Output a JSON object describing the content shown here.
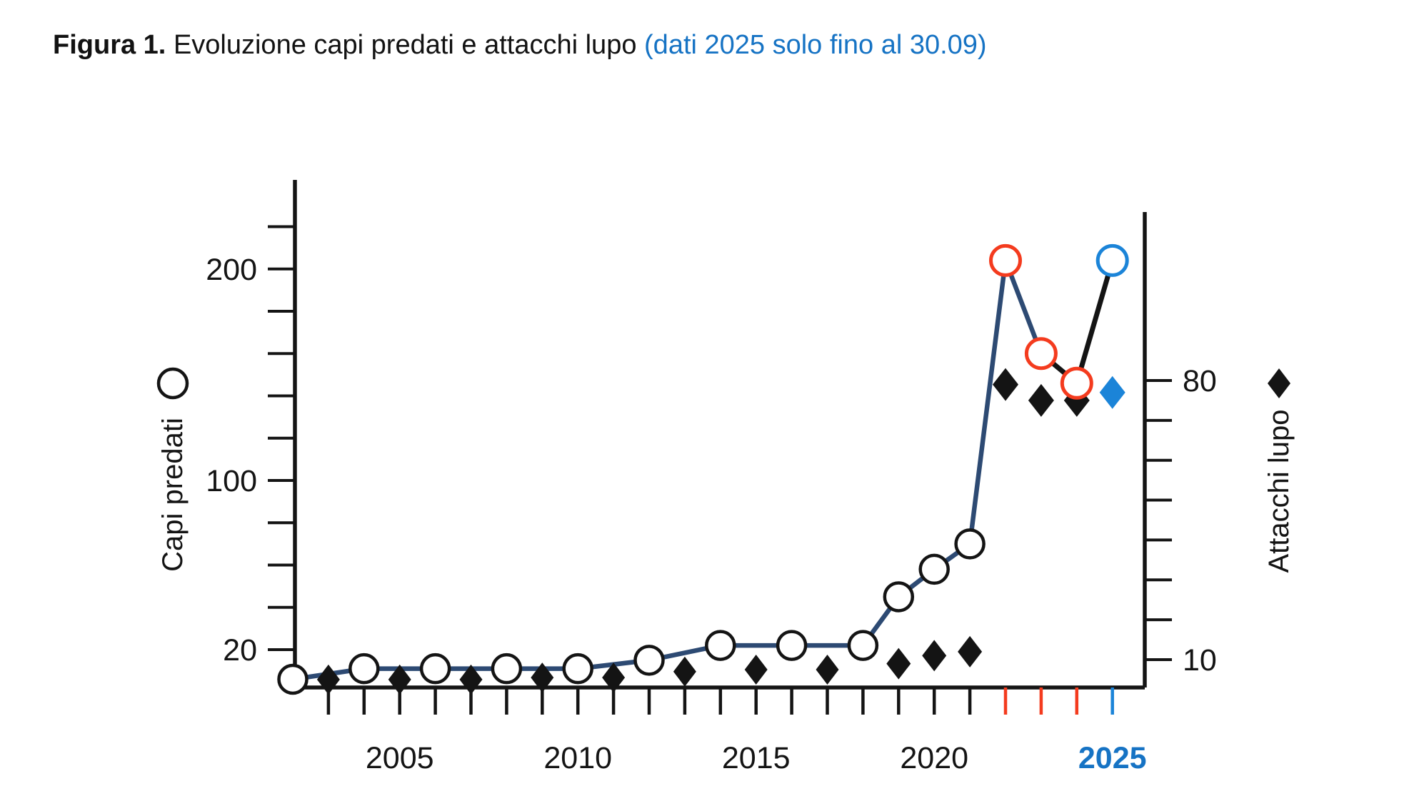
{
  "title": {
    "prefix": "Figura 1.",
    "main": "Evoluzione capi predati e attacchi lupo",
    "note": "(dati 2025 solo fino al 30.09)"
  },
  "colors": {
    "black": "#141414",
    "navy": "#2d4a73",
    "red": "#f43b1e",
    "blue": "#1b84d8",
    "blue_text": "#1673c4"
  },
  "chart_data": {
    "type": "line",
    "title": "Evoluzione capi predati e attacchi lupo",
    "left_axis": {
      "label": "Capi predati",
      "marker": "circle",
      "ticks": [
        20,
        40,
        60,
        80,
        100,
        120,
        140,
        160,
        180,
        200,
        220
      ],
      "labeled_ticks": [
        20,
        100,
        200
      ]
    },
    "right_axis": {
      "label": "Attacchi lupo",
      "marker": "diamond",
      "ticks": [
        10,
        20,
        30,
        40,
        50,
        60,
        70,
        80
      ],
      "labeled_ticks": [
        10,
        80
      ]
    },
    "x_axis": {
      "ticks": [
        2003,
        2004,
        2005,
        2006,
        2007,
        2008,
        2009,
        2010,
        2011,
        2012,
        2013,
        2014,
        2015,
        2016,
        2017,
        2018,
        2019,
        2020,
        2021,
        2022,
        2023,
        2024,
        2025
      ],
      "labeled_ticks": [
        2005,
        2010,
        2015,
        2020,
        2025
      ],
      "red_ticks": [
        2022,
        2023,
        2024
      ],
      "blue_ticks": [
        2025
      ],
      "blue_bold_labels": [
        2025
      ]
    },
    "series": [
      {
        "name": "Capi predati",
        "axis": "left",
        "marker": "circle",
        "line": true,
        "line_color": "navy",
        "black_segments": [
          [
            2023,
            2024
          ],
          [
            2024,
            2025
          ]
        ],
        "marker_color_by_year": {
          "2022": "red",
          "2023": "red",
          "2024": "red",
          "2025": "blue"
        },
        "points": [
          [
            2002,
            6
          ],
          [
            2004,
            11
          ],
          [
            2006,
            11
          ],
          [
            2008,
            11
          ],
          [
            2010,
            11
          ],
          [
            2012,
            15
          ],
          [
            2014,
            22
          ],
          [
            2016,
            22
          ],
          [
            2018,
            22
          ],
          [
            2019,
            45
          ],
          [
            2020,
            58
          ],
          [
            2021,
            70
          ],
          [
            2022,
            204
          ],
          [
            2023,
            160
          ],
          [
            2024,
            146
          ],
          [
            2025,
            204
          ]
        ]
      },
      {
        "name": "Attacchi lupo",
        "axis": "right",
        "marker": "diamond",
        "line": false,
        "marker_color_by_year": {
          "2025": "blue"
        },
        "points": [
          [
            2003,
            5
          ],
          [
            2005,
            5
          ],
          [
            2007,
            5
          ],
          [
            2009,
            5.5
          ],
          [
            2011,
            5.5
          ],
          [
            2013,
            7
          ],
          [
            2015,
            7.5
          ],
          [
            2017,
            7.5
          ],
          [
            2019,
            9
          ],
          [
            2020,
            11
          ],
          [
            2021,
            12
          ],
          [
            2022,
            79
          ],
          [
            2023,
            75
          ],
          [
            2024,
            75
          ],
          [
            2025,
            77
          ]
        ]
      }
    ]
  }
}
